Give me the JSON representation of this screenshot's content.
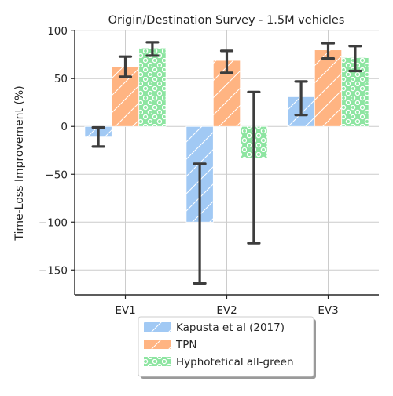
{
  "chart_data": {
    "type": "bar",
    "title": "Origin/Destination Survey - 1.5M vehicles",
    "xlabel": "",
    "ylabel": "Time-Loss Improvement (%)",
    "categories": [
      "EV1",
      "EV2",
      "EV3"
    ],
    "ylim": [
      -176,
      101
    ],
    "yticks": [
      100,
      50,
      0,
      -50,
      -100,
      -150
    ],
    "ytick_labels": [
      "100",
      "50",
      "0",
      "−50",
      "−100",
      "−150"
    ],
    "grid": true,
    "legend_position": "bottom-center",
    "series": [
      {
        "name": "Kapusta et al (2017)",
        "color": "#a1c9f4",
        "hatch": "diagonal",
        "values": [
          -11,
          -100,
          31
        ],
        "error_low": [
          -21,
          -164,
          12
        ],
        "error_high": [
          -1,
          -39,
          47
        ]
      },
      {
        "name": "TPN",
        "color": "#ffb482",
        "hatch": "diagonal",
        "values": [
          62,
          69,
          80
        ],
        "error_low": [
          52,
          56,
          71
        ],
        "error_high": [
          73,
          79,
          87
        ]
      },
      {
        "name": "Hyphotetical all-green",
        "color": "#8de5a1",
        "hatch": "circles",
        "values": [
          82,
          -33,
          72
        ],
        "error_low": [
          74,
          -122,
          58
        ],
        "error_high": [
          88,
          36,
          84
        ]
      }
    ]
  }
}
